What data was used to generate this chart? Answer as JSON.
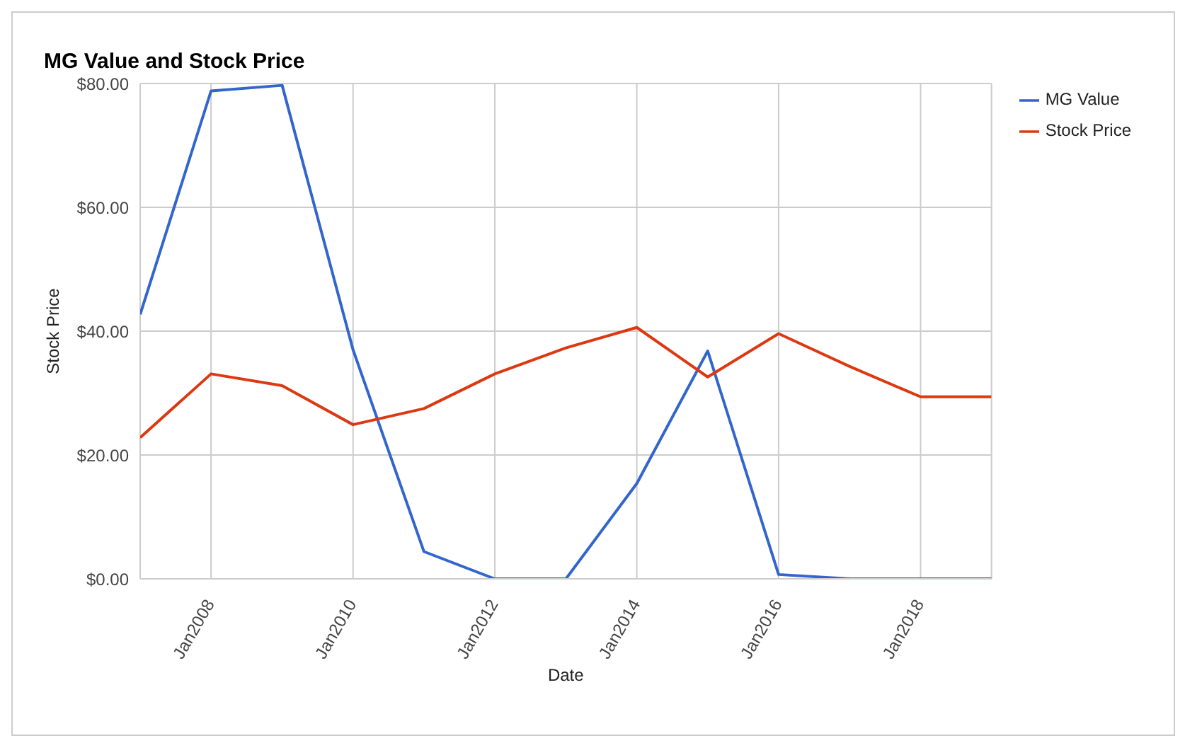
{
  "chart_data": {
    "type": "line",
    "title": "MG Value and Stock Price",
    "xlabel": "Date",
    "ylabel": "Stock Price",
    "x": [
      "2007-01",
      "2008-01",
      "2009-01",
      "2010-01",
      "2011-01",
      "2012-01",
      "2013-01",
      "2014-01",
      "2015-01",
      "2016-01",
      "2017-01",
      "2018-01",
      "2019-01"
    ],
    "series": [
      {
        "name": "MG Value",
        "color": "#3366cc",
        "values": [
          42.7,
          78.8,
          79.7,
          37,
          4.4,
          0,
          0,
          15.4,
          36.8,
          0.7,
          0,
          0,
          0
        ]
      },
      {
        "name": "Stock Price",
        "color": "#dc3912",
        "values": [
          22.8,
          33.1,
          31.2,
          24.9,
          27.5,
          33.1,
          37.3,
          40.6,
          32.6,
          39.6,
          34.3,
          29.4,
          29.4
        ]
      }
    ],
    "xlim": [
      "2007-01",
      "2019-01"
    ],
    "xticks": [
      {
        "value": "2008-01",
        "label": "Jan2008"
      },
      {
        "value": "2010-01",
        "label": "Jan2010"
      },
      {
        "value": "2012-01",
        "label": "Jan2012"
      },
      {
        "value": "2014-01",
        "label": "Jan2014"
      },
      {
        "value": "2016-01",
        "label": "Jan2016"
      },
      {
        "value": "2018-01",
        "label": "Jan2018"
      }
    ],
    "ylim": [
      0,
      80
    ],
    "yticks": [
      {
        "value": 0,
        "label": "$0.00"
      },
      {
        "value": 20,
        "label": "$20.00"
      },
      {
        "value": 40,
        "label": "$40.00"
      },
      {
        "value": 60,
        "label": "$60.00"
      },
      {
        "value": 80,
        "label": "$80.00"
      }
    ],
    "grid": true,
    "legend": "top right",
    "marker": "none",
    "line_style": "solid"
  }
}
